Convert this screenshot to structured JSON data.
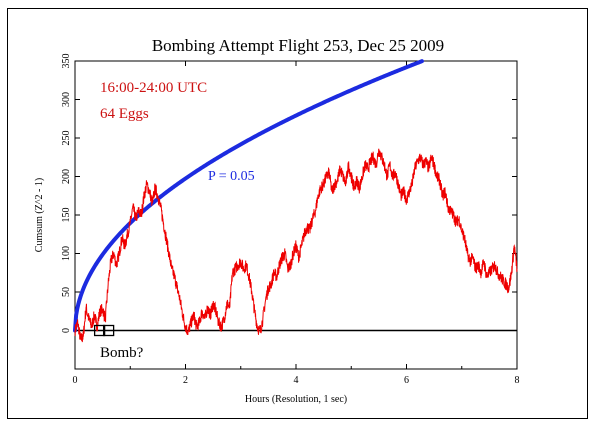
{
  "chart_data": {
    "type": "line",
    "title": "Bombing Attempt Flight 253, Dec 25 2009",
    "xlabel": "Hours (Resolution, 1 sec)",
    "ylabel": "Cumsum (Z^2 - 1)",
    "xlim": [
      0,
      8
    ],
    "ylim": [
      -50,
      350
    ],
    "x_ticks": [
      "0",
      "2",
      "4",
      "6",
      "8"
    ],
    "y_ticks": [
      "0",
      "50",
      "100",
      "150",
      "200",
      "250",
      "300",
      "350"
    ],
    "annotations": {
      "time_range": "16:00-24:00 UTC",
      "eggs": "64 Eggs",
      "p_label": "P = 0.05",
      "event_label": "Bomb?"
    },
    "event_x": 0.5,
    "colors": {
      "data": "#ee0000",
      "envelope": "#1c2be0",
      "baseline": "#000000",
      "annotation": "#cc1111"
    },
    "series": [
      {
        "values": [
          [
            0,
            0
          ],
          [
            0.05,
            10
          ],
          [
            0.1,
            -12
          ],
          [
            0.15,
            -8
          ],
          [
            0.2,
            30
          ],
          [
            0.25,
            15
          ],
          [
            0.3,
            5
          ],
          [
            0.35,
            20
          ],
          [
            0.4,
            5
          ],
          [
            0.45,
            25
          ],
          [
            0.5,
            28
          ],
          [
            0.55,
            15
          ],
          [
            0.6,
            60
          ],
          [
            0.65,
            90
          ],
          [
            0.7,
            100
          ],
          [
            0.75,
            85
          ],
          [
            0.8,
            100
          ],
          [
            0.85,
            120
          ],
          [
            0.9,
            110
          ],
          [
            0.95,
            125
          ],
          [
            1.0,
            140
          ],
          [
            1.05,
            160
          ],
          [
            1.1,
            145
          ],
          [
            1.15,
            155
          ],
          [
            1.2,
            150
          ],
          [
            1.25,
            175
          ],
          [
            1.3,
            190
          ],
          [
            1.35,
            180
          ],
          [
            1.4,
            165
          ],
          [
            1.45,
            185
          ],
          [
            1.5,
            175
          ],
          [
            1.55,
            160
          ],
          [
            1.6,
            140
          ],
          [
            1.65,
            120
          ],
          [
            1.7,
            100
          ],
          [
            1.75,
            80
          ],
          [
            1.8,
            70
          ],
          [
            1.85,
            55
          ],
          [
            1.9,
            40
          ],
          [
            1.95,
            20
          ],
          [
            2.0,
            5
          ],
          [
            2.05,
            -2
          ],
          [
            2.1,
            10
          ],
          [
            2.15,
            20
          ],
          [
            2.2,
            5
          ],
          [
            2.25,
            10
          ],
          [
            2.3,
            25
          ],
          [
            2.35,
            15
          ],
          [
            2.4,
            30
          ],
          [
            2.45,
            20
          ],
          [
            2.5,
            35
          ],
          [
            2.55,
            25
          ],
          [
            2.6,
            10
          ],
          [
            2.65,
            5
          ],
          [
            2.7,
            15
          ],
          [
            2.75,
            35
          ],
          [
            2.8,
            30
          ],
          [
            2.85,
            75
          ],
          [
            2.9,
            80
          ],
          [
            2.95,
            85
          ],
          [
            3.0,
            90
          ],
          [
            3.05,
            80
          ],
          [
            3.1,
            85
          ],
          [
            3.15,
            70
          ],
          [
            3.2,
            50
          ],
          [
            3.25,
            25
          ],
          [
            3.3,
            5
          ],
          [
            3.35,
            -2
          ],
          [
            3.4,
            15
          ],
          [
            3.45,
            40
          ],
          [
            3.5,
            55
          ],
          [
            3.55,
            60
          ],
          [
            3.6,
            75
          ],
          [
            3.65,
            70
          ],
          [
            3.7,
            85
          ],
          [
            3.75,
            95
          ],
          [
            3.8,
            100
          ],
          [
            3.85,
            80
          ],
          [
            3.9,
            85
          ],
          [
            3.95,
            100
          ],
          [
            4.0,
            110
          ],
          [
            4.05,
            95
          ],
          [
            4.1,
            110
          ],
          [
            4.15,
            125
          ],
          [
            4.2,
            135
          ],
          [
            4.25,
            130
          ],
          [
            4.3,
            145
          ],
          [
            4.35,
            155
          ],
          [
            4.4,
            175
          ],
          [
            4.45,
            185
          ],
          [
            4.5,
            190
          ],
          [
            4.55,
            200
          ],
          [
            4.6,
            205
          ],
          [
            4.65,
            180
          ],
          [
            4.7,
            190
          ],
          [
            4.75,
            195
          ],
          [
            4.8,
            210
          ],
          [
            4.85,
            200
          ],
          [
            4.9,
            190
          ],
          [
            4.95,
            215
          ],
          [
            5.0,
            200
          ],
          [
            5.05,
            185
          ],
          [
            5.1,
            195
          ],
          [
            5.15,
            185
          ],
          [
            5.2,
            200
          ],
          [
            5.25,
            215
          ],
          [
            5.3,
            210
          ],
          [
            5.35,
            220
          ],
          [
            5.4,
            225
          ],
          [
            5.45,
            215
          ],
          [
            5.5,
            235
          ],
          [
            5.55,
            225
          ],
          [
            5.6,
            215
          ],
          [
            5.65,
            200
          ],
          [
            5.7,
            215
          ],
          [
            5.75,
            200
          ],
          [
            5.8,
            205
          ],
          [
            5.85,
            190
          ],
          [
            5.9,
            175
          ],
          [
            5.95,
            180
          ],
          [
            6.0,
            170
          ],
          [
            6.05,
            180
          ],
          [
            6.1,
            190
          ],
          [
            6.15,
            210
          ],
          [
            6.2,
            220
          ],
          [
            6.25,
            225
          ],
          [
            6.3,
            215
          ],
          [
            6.35,
            220
          ],
          [
            6.4,
            210
          ],
          [
            6.45,
            225
          ],
          [
            6.5,
            215
          ],
          [
            6.55,
            200
          ],
          [
            6.6,
            195
          ],
          [
            6.65,
            175
          ],
          [
            6.7,
            180
          ],
          [
            6.75,
            160
          ],
          [
            6.8,
            155
          ],
          [
            6.85,
            150
          ],
          [
            6.9,
            140
          ],
          [
            6.95,
            145
          ],
          [
            7.0,
            130
          ],
          [
            7.05,
            120
          ],
          [
            7.1,
            100
          ],
          [
            7.15,
            90
          ],
          [
            7.2,
            95
          ],
          [
            7.25,
            80
          ],
          [
            7.3,
            85
          ],
          [
            7.35,
            75
          ],
          [
            7.4,
            90
          ],
          [
            7.45,
            70
          ],
          [
            7.5,
            75
          ],
          [
            7.55,
            80
          ],
          [
            7.6,
            85
          ],
          [
            7.65,
            75
          ],
          [
            7.7,
            70
          ],
          [
            7.75,
            65
          ],
          [
            7.8,
            60
          ],
          [
            7.85,
            55
          ],
          [
            7.9,
            75
          ],
          [
            7.95,
            110
          ],
          [
            8.0,
            80
          ]
        ]
      }
    ]
  }
}
